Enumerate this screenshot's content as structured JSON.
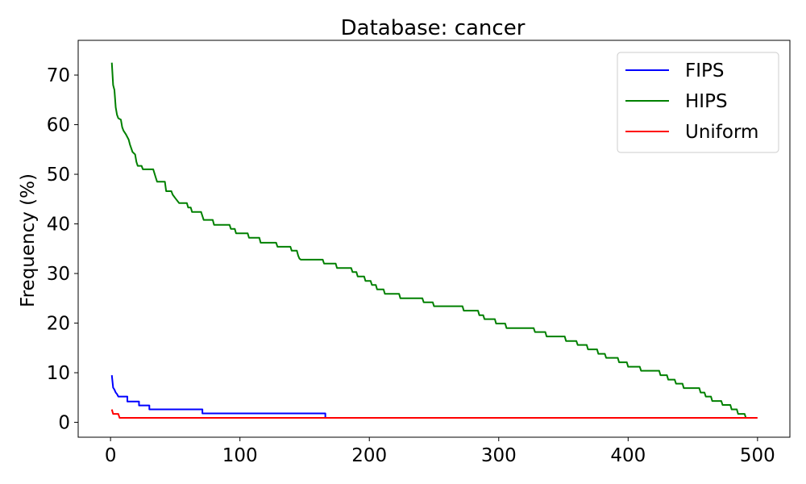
{
  "chart_data": {
    "type": "line",
    "title": "Database: cancer",
    "xlabel": "",
    "ylabel": "Frequency (%)",
    "xlim": [
      -25,
      525
    ],
    "ylim": [
      -3,
      77
    ],
    "xticks": [
      0,
      100,
      200,
      300,
      400,
      500
    ],
    "yticks": [
      0,
      10,
      20,
      30,
      40,
      50,
      60,
      70
    ],
    "grid": false,
    "legend_position": "top-right",
    "series": [
      {
        "name": "FIPS",
        "color": "#0000ff",
        "points": [
          [
            1,
            9.5
          ],
          [
            2,
            7.0
          ],
          [
            3,
            6.6
          ],
          [
            4,
            6.0
          ],
          [
            5,
            5.7
          ],
          [
            6,
            5.2
          ],
          [
            13,
            5.2
          ],
          [
            13,
            4.2
          ],
          [
            22,
            4.2
          ],
          [
            22,
            3.4
          ],
          [
            30,
            3.4
          ],
          [
            30,
            2.6
          ],
          [
            71,
            2.6
          ],
          [
            71,
            1.8
          ],
          [
            166,
            1.8
          ],
          [
            166,
            0.9
          ]
        ]
      },
      {
        "name": "HIPS",
        "color": "#008000",
        "points": [
          [
            1,
            72.5
          ],
          [
            2,
            68.0
          ],
          [
            3,
            67.0
          ],
          [
            4,
            63.5
          ],
          [
            5,
            62.0
          ],
          [
            6,
            61.3
          ],
          [
            8,
            61.0
          ],
          [
            9,
            59.5
          ],
          [
            10,
            58.8
          ],
          [
            12,
            58.0
          ],
          [
            14,
            57.0
          ],
          [
            15,
            56.0
          ],
          [
            17,
            54.5
          ],
          [
            19,
            54.0
          ],
          [
            20,
            52.5
          ],
          [
            21,
            51.7
          ],
          [
            24,
            51.7
          ],
          [
            25,
            51.0
          ],
          [
            33,
            51.0
          ],
          [
            35,
            49.3
          ],
          [
            36,
            48.5
          ],
          [
            42,
            48.5
          ],
          [
            43,
            46.6
          ],
          [
            47,
            46.6
          ],
          [
            48,
            45.9
          ],
          [
            50,
            45.2
          ],
          [
            53,
            44.2
          ],
          [
            59,
            44.2
          ],
          [
            60,
            43.3
          ],
          [
            62,
            43.3
          ],
          [
            63,
            42.4
          ],
          [
            70,
            42.4
          ],
          [
            72,
            40.8
          ],
          [
            79,
            40.8
          ],
          [
            80,
            39.8
          ],
          [
            92,
            39.8
          ],
          [
            93,
            39.0
          ],
          [
            96,
            39.0
          ],
          [
            97,
            38.1
          ],
          [
            106,
            38.1
          ],
          [
            107,
            37.2
          ],
          [
            115,
            37.2
          ],
          [
            116,
            36.2
          ],
          [
            128,
            36.2
          ],
          [
            129,
            35.4
          ],
          [
            139,
            35.4
          ],
          [
            140,
            34.6
          ],
          [
            144,
            34.6
          ],
          [
            145,
            33.6
          ],
          [
            146,
            33.0
          ],
          [
            147,
            32.8
          ],
          [
            164,
            32.8
          ],
          [
            165,
            32.0
          ],
          [
            174,
            32.0
          ],
          [
            175,
            31.1
          ],
          [
            186,
            31.1
          ],
          [
            187,
            30.3
          ],
          [
            190,
            30.3
          ],
          [
            191,
            29.4
          ],
          [
            196,
            29.4
          ],
          [
            197,
            28.5
          ],
          [
            201,
            28.5
          ],
          [
            202,
            27.7
          ],
          [
            205,
            27.7
          ],
          [
            206,
            26.8
          ],
          [
            211,
            26.8
          ],
          [
            212,
            25.9
          ],
          [
            223,
            25.9
          ],
          [
            224,
            25.0
          ],
          [
            241,
            25.0
          ],
          [
            242,
            24.2
          ],
          [
            249,
            24.2
          ],
          [
            250,
            23.4
          ],
          [
            272,
            23.4
          ],
          [
            273,
            22.5
          ],
          [
            284,
            22.5
          ],
          [
            285,
            21.6
          ],
          [
            288,
            21.6
          ],
          [
            289,
            20.8
          ],
          [
            297,
            20.8
          ],
          [
            298,
            19.9
          ],
          [
            305,
            19.9
          ],
          [
            306,
            19.0
          ],
          [
            327,
            19.0
          ],
          [
            328,
            18.2
          ],
          [
            336,
            18.2
          ],
          [
            337,
            17.3
          ],
          [
            351,
            17.3
          ],
          [
            352,
            16.4
          ],
          [
            360,
            16.4
          ],
          [
            361,
            15.6
          ],
          [
            368,
            15.6
          ],
          [
            369,
            14.7
          ],
          [
            376,
            14.7
          ],
          [
            377,
            13.8
          ],
          [
            382,
            13.8
          ],
          [
            383,
            13.0
          ],
          [
            392,
            13.0
          ],
          [
            393,
            12.1
          ],
          [
            399,
            12.1
          ],
          [
            400,
            11.2
          ],
          [
            409,
            11.2
          ],
          [
            410,
            10.4
          ],
          [
            424,
            10.4
          ],
          [
            425,
            9.5
          ],
          [
            430,
            9.5
          ],
          [
            431,
            8.6
          ],
          [
            436,
            8.6
          ],
          [
            437,
            7.8
          ],
          [
            442,
            7.8
          ],
          [
            443,
            6.9
          ],
          [
            455,
            6.9
          ],
          [
            456,
            6.0
          ],
          [
            459,
            6.0
          ],
          [
            460,
            5.2
          ],
          [
            464,
            5.2
          ],
          [
            465,
            4.3
          ],
          [
            472,
            4.3
          ],
          [
            473,
            3.5
          ],
          [
            479,
            3.5
          ],
          [
            480,
            2.6
          ],
          [
            484,
            2.6
          ],
          [
            485,
            1.7
          ],
          [
            490,
            1.7
          ],
          [
            491,
            0.9
          ]
        ]
      },
      {
        "name": "Uniform",
        "color": "#ff0000",
        "points": [
          [
            1,
            2.6
          ],
          [
            2,
            1.7
          ],
          [
            6,
            1.7
          ],
          [
            7,
            0.9
          ],
          [
            500,
            0.9
          ]
        ]
      }
    ]
  }
}
